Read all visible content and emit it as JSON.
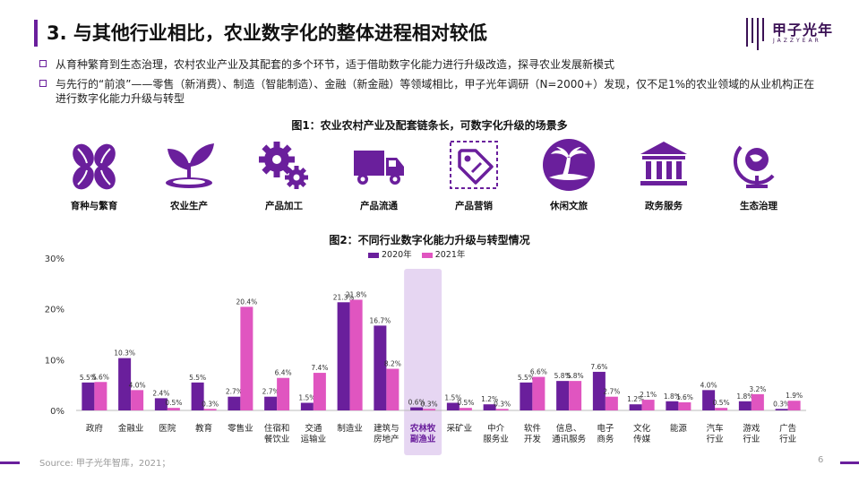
{
  "header": {
    "title": "3. 与其他行业相比，农业数字化的整体进程相对较低",
    "logo_cn": "甲子光年",
    "logo_en": "JAZZYEAR"
  },
  "bullets": [
    "从育种繁育到生态治理，农村农业产业及其配套的多个环节，适于借助数字化能力进行升级改造，探寻农业发展新模式",
    "与先行的“前浪”——零售（新消费）、制造（智能制造）、金融（新金融）等领域相比，甲子光年调研（N=2000+）发现，仅不足1%的农业领域的从业机构正在进行数字化能力升级与转型"
  ],
  "figure1": {
    "title": "图1：农业农村产业及配套链条长，可数字化升级的场景多",
    "items": [
      {
        "label": "育种与繁育",
        "icon": "seeds-icon"
      },
      {
        "label": "农业生产",
        "icon": "sprout-icon"
      },
      {
        "label": "产品加工",
        "icon": "gears-icon"
      },
      {
        "label": "产品流通",
        "icon": "truck-icon"
      },
      {
        "label": "产品营销",
        "icon": "price-tag-icon"
      },
      {
        "label": "休闲文旅",
        "icon": "palm-island-icon"
      },
      {
        "label": "政务服务",
        "icon": "government-building-icon"
      },
      {
        "label": "生态治理",
        "icon": "globe-stand-icon"
      }
    ],
    "icon_color": "#6a1f9c"
  },
  "chart_data": {
    "type": "bar",
    "title": "图2：不同行业数字化能力升级与转型情况",
    "categories": [
      "政府",
      "金融业",
      "医院",
      "教育",
      "零售业",
      "住宿和\n餐饮业",
      "交通\n运输业",
      "制造业",
      "建筑与\n房地产",
      "农林牧\n副渔业",
      "采矿业",
      "中介\n服务业",
      "软件\n开发",
      "信息、\n通讯服务",
      "电子\n商务",
      "文化\n传媒",
      "能源",
      "汽车\n行业",
      "游戏\n行业",
      "广告\n行业"
    ],
    "series": [
      {
        "name": "2020年",
        "color": "#6a1f9c",
        "values": [
          5.5,
          10.3,
          2.4,
          5.5,
          2.7,
          2.7,
          1.5,
          21.3,
          16.7,
          0.6,
          1.5,
          1.2,
          5.5,
          5.8,
          7.6,
          1.2,
          1.8,
          4.0,
          1.8,
          0.3
        ]
      },
      {
        "name": "2021年",
        "color": "#e055c0",
        "values": [
          5.6,
          4.0,
          0.5,
          0.3,
          20.4,
          6.4,
          7.4,
          21.8,
          8.2,
          0.3,
          0.5,
          0.3,
          6.6,
          5.8,
          2.7,
          2.1,
          1.6,
          0.5,
          3.2,
          1.9
        ]
      }
    ],
    "data_labels": [
      [
        "5.5%",
        "5.6%"
      ],
      [
        "10.3%",
        "4.0%"
      ],
      [
        "2.4%",
        "0.5%"
      ],
      [
        "5.5%",
        "0.3%"
      ],
      [
        "2.7%",
        "20.4%"
      ],
      [
        "2.7%",
        "6.4%"
      ],
      [
        "1.5%",
        "7.4%"
      ],
      [
        "21.3%",
        "21.8%"
      ],
      [
        "16.7%",
        "8.2%"
      ],
      [
        "0.6%",
        "0.3%"
      ],
      [
        "1.5%",
        "0.5%"
      ],
      [
        "1.2%",
        "0.3%"
      ],
      [
        "5.5%",
        "6.6%"
      ],
      [
        "5.8%",
        "5.8%"
      ],
      [
        "7.6%",
        "2.7%"
      ],
      [
        "1.2%",
        "2.1%"
      ],
      [
        "1.8%",
        "1.6%"
      ],
      [
        "4.0%",
        "0.5%"
      ],
      [
        "1.8%",
        "3.2%"
      ],
      [
        "0.3%",
        "1.9%"
      ]
    ],
    "highlight_category": "农林牧\n副渔业",
    "highlight_color": "#e6d6f2",
    "highlight_label_color": "#6a1f9c",
    "yticks": [
      "0%",
      "10%",
      "20%",
      "30%"
    ],
    "ylim": [
      0,
      30
    ],
    "legend_position": "top-center",
    "grid": false
  },
  "footer": {
    "source": "Source: 甲子光年智库，2021；",
    "page": "6"
  }
}
